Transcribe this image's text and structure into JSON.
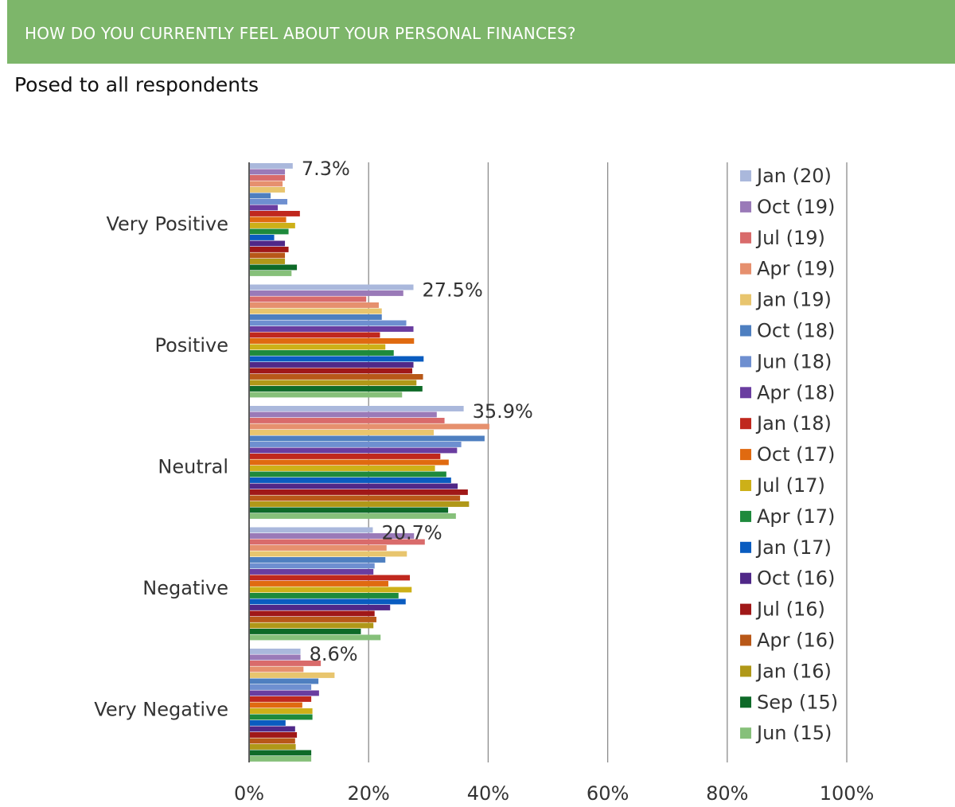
{
  "header": {
    "title": "HOW DO YOU CURRENTLY FEEL ABOUT YOUR PERSONAL FINANCES?",
    "subtitle": "Posed to all respondents"
  },
  "chart_data": {
    "type": "bar",
    "orientation": "horizontal",
    "categories": [
      "Very Positive",
      "Positive",
      "Neutral",
      "Negative",
      "Very Negative"
    ],
    "series": [
      {
        "name": "Jan (20)",
        "color": "#aab8dc",
        "values": [
          7.3,
          27.5,
          35.9,
          20.7,
          8.6
        ]
      },
      {
        "name": "Oct (19)",
        "color": "#9a7ab8",
        "values": [
          6.0,
          25.8,
          31.4,
          27.6,
          8.6
        ]
      },
      {
        "name": "Jul (19)",
        "color": "#d96b6b",
        "values": [
          6.0,
          19.6,
          32.7,
          29.4,
          12.0
        ]
      },
      {
        "name": "Apr (19)",
        "color": "#e6906e",
        "values": [
          5.6,
          21.7,
          40.2,
          23.0,
          9.1
        ]
      },
      {
        "name": "Jan (19)",
        "color": "#e8c56e",
        "values": [
          6.0,
          22.2,
          30.9,
          26.4,
          14.3
        ]
      },
      {
        "name": "Oct (18)",
        "color": "#4e7fc0",
        "values": [
          3.6,
          22.2,
          39.4,
          22.8,
          11.6
        ]
      },
      {
        "name": "Jun (18)",
        "color": "#6e8fd0",
        "values": [
          6.4,
          26.3,
          35.5,
          21.0,
          10.4
        ]
      },
      {
        "name": "Apr (18)",
        "color": "#6a3da0",
        "values": [
          4.8,
          27.5,
          34.8,
          20.8,
          11.7
        ]
      },
      {
        "name": "Jan (18)",
        "color": "#c0281e",
        "values": [
          8.5,
          21.9,
          32.0,
          26.9,
          10.4
        ]
      },
      {
        "name": "Oct (17)",
        "color": "#e06a10",
        "values": [
          6.2,
          27.6,
          33.4,
          23.3,
          8.9
        ]
      },
      {
        "name": "Jul (17)",
        "color": "#cdb018",
        "values": [
          7.7,
          22.8,
          31.1,
          27.2,
          10.6
        ]
      },
      {
        "name": "Apr (17)",
        "color": "#1e8a3c",
        "values": [
          6.6,
          24.2,
          33.0,
          25.0,
          10.6
        ]
      },
      {
        "name": "Jan (17)",
        "color": "#0a5cc0",
        "values": [
          4.2,
          29.2,
          33.8,
          26.2,
          6.1
        ]
      },
      {
        "name": "Oct (16)",
        "color": "#502888",
        "values": [
          6.0,
          27.5,
          34.9,
          23.6,
          7.7
        ]
      },
      {
        "name": "Jul (16)",
        "color": "#a01818",
        "values": [
          6.6,
          27.3,
          36.6,
          21.0,
          8.0
        ]
      },
      {
        "name": "Apr (16)",
        "color": "#b85818",
        "values": [
          6.0,
          29.1,
          35.3,
          21.3,
          7.7
        ]
      },
      {
        "name": "Jan (16)",
        "color": "#b09818",
        "values": [
          6.0,
          28.0,
          36.8,
          20.8,
          7.8
        ]
      },
      {
        "name": "Sep (15)",
        "color": "#0e6a28",
        "values": [
          8.0,
          29.0,
          33.3,
          18.7,
          10.4
        ]
      },
      {
        "name": "Jun (15)",
        "color": "#86c07a",
        "values": [
          7.1,
          25.6,
          34.6,
          22.0,
          10.4
        ]
      }
    ],
    "data_labels": [
      "7.3%",
      "27.5%",
      "35.9%",
      "20.7%",
      "8.6%"
    ],
    "x_ticks": [
      "0%",
      "20%",
      "40%",
      "60%",
      "80%",
      "100%"
    ],
    "xlim": [
      0,
      100
    ],
    "grid": true,
    "legend_position": "right"
  }
}
